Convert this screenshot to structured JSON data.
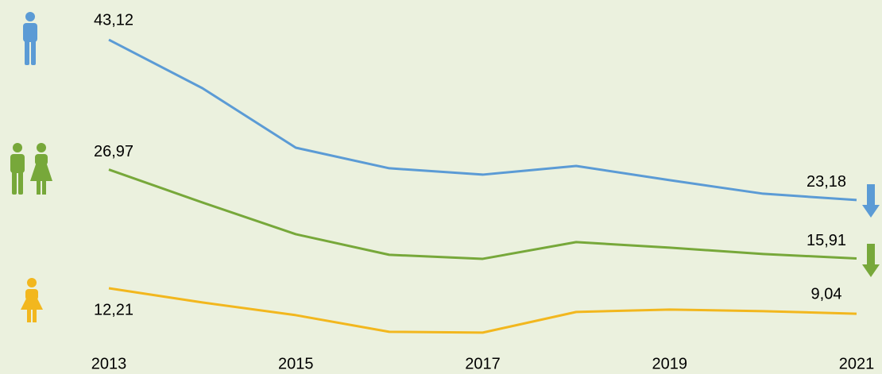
{
  "chart_data": {
    "type": "line",
    "x": [
      2013,
      2014,
      2015,
      2016,
      2017,
      2018,
      2019,
      2020,
      2021
    ],
    "xlim": [
      2013,
      2021
    ],
    "xticks": [
      2013,
      2015,
      2017,
      2019,
      2021
    ],
    "ylim": [
      5,
      45
    ],
    "series": [
      {
        "color": "#5b9bd5",
        "values": [
          43.12,
          37.1,
          29.69,
          27.13,
          26.34,
          27.42,
          25.65,
          23.97,
          23.18
        ],
        "value_labels": [
          "43,12",
          null,
          null,
          null,
          null,
          null,
          null,
          null,
          "23,18"
        ]
      },
      {
        "color": "#77a83a",
        "values": [
          26.97,
          22.88,
          18.93,
          16.37,
          15.87,
          17.95,
          17.26,
          16.47,
          15.91
        ],
        "value_labels": [
          "26,97",
          null,
          null,
          null,
          null,
          null,
          null,
          null,
          "15,91"
        ]
      },
      {
        "color": "#f2b71e",
        "values": [
          12.21,
          10.44,
          8.86,
          6.79,
          6.69,
          9.26,
          9.56,
          9.36,
          9.04
        ],
        "value_labels": [
          "12,21",
          null,
          null,
          null,
          null,
          null,
          null,
          null,
          "9,04"
        ]
      }
    ]
  }
}
